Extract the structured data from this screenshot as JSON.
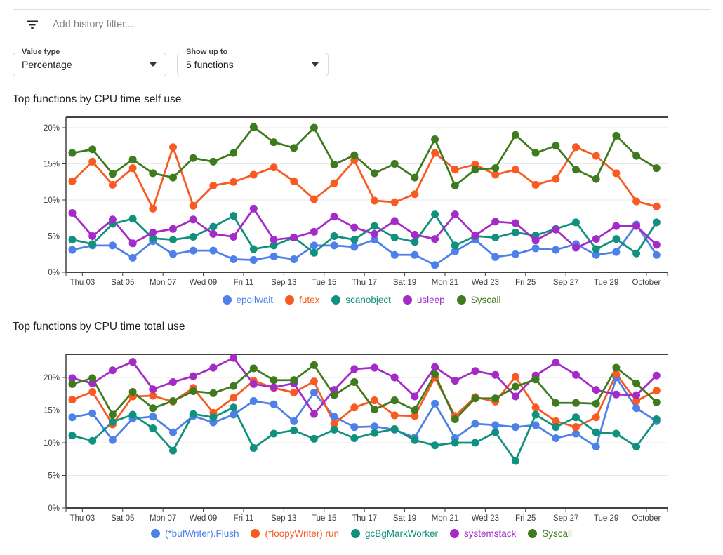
{
  "filter_bar": {
    "icon": "filter-list-icon",
    "placeholder": "Add history filter..."
  },
  "controls": {
    "value_type": {
      "label": "Value type",
      "value": "Percentage"
    },
    "show_up_to": {
      "label": "Show up to",
      "value": "5 functions"
    }
  },
  "colors": {
    "blue": "#4D80E8",
    "orange": "#F85A21",
    "teal": "#10917E",
    "purple": "#A42BC8",
    "green": "#3E7A1E",
    "axis": "#424242",
    "grid": "#E9E9E9",
    "tick_label": "#3C4043"
  },
  "chart_data": [
    {
      "type": "line",
      "title": "Top functions by CPU time self use",
      "xlabel": "",
      "ylabel": "",
      "ylim": [
        0,
        21.5
      ],
      "grid": true,
      "legend_position": "bottom",
      "y_tick_labels": [
        "0%",
        "5%",
        "10%",
        "15%",
        "20%"
      ],
      "x_tick_labels": [
        "Thu 03",
        "Sat 05",
        "Mon 07",
        "Wed 09",
        "Fri 11",
        "Sep 13",
        "Tue 15",
        "Thu 17",
        "Sat 19",
        "Mon 21",
        "Wed 23",
        "Fri 25",
        "Sep 27",
        "Tue 29",
        "October"
      ],
      "series": [
        {
          "name": "epollwait",
          "color": "#4D80E8",
          "values": [
            3.1,
            3.7,
            3.7,
            2.0,
            4.3,
            2.5,
            3.0,
            3.0,
            1.8,
            1.7,
            2.2,
            1.8,
            3.7,
            3.7,
            3.5,
            4.5,
            2.4,
            2.4,
            1.0,
            2.9,
            4.5,
            2.1,
            2.5,
            3.3,
            3.1,
            3.9,
            2.4,
            2.8,
            6.6,
            2.4
          ]
        },
        {
          "name": "futex",
          "color": "#F85A21",
          "values": [
            12.6,
            15.3,
            12.1,
            14.4,
            8.8,
            17.3,
            9.2,
            12.0,
            12.5,
            13.5,
            14.5,
            12.6,
            10.1,
            12.3,
            15.5,
            9.9,
            9.7,
            10.8,
            16.5,
            14.2,
            14.9,
            13.5,
            14.2,
            12.1,
            12.9,
            17.3,
            16.1,
            13.7,
            9.8,
            9.1
          ]
        },
        {
          "name": "scanobject",
          "color": "#10917E",
          "values": [
            4.5,
            3.9,
            6.7,
            7.4,
            4.7,
            4.5,
            4.9,
            6.3,
            7.8,
            3.2,
            3.7,
            4.8,
            2.7,
            5.0,
            4.5,
            6.4,
            4.8,
            4.2,
            8.0,
            3.7,
            5.0,
            4.8,
            5.5,
            5.1,
            6.0,
            6.9,
            3.2,
            4.6,
            2.6,
            6.9
          ]
        },
        {
          "name": "usleep",
          "color": "#A42BC8",
          "values": [
            8.2,
            5.0,
            7.3,
            4.0,
            5.5,
            6.0,
            7.3,
            5.3,
            4.9,
            8.8,
            4.5,
            4.8,
            5.6,
            7.7,
            6.2,
            5.3,
            7.1,
            5.2,
            4.6,
            8.0,
            5.1,
            7.0,
            6.8,
            4.4,
            5.9,
            3.4,
            4.6,
            6.4,
            6.4,
            3.8
          ]
        },
        {
          "name": "Syscall",
          "color": "#3E7A1E",
          "values": [
            16.5,
            17.0,
            13.6,
            15.6,
            13.7,
            13.1,
            15.8,
            15.3,
            16.5,
            20.1,
            18.0,
            17.2,
            20.0,
            14.9,
            16.2,
            13.7,
            15.0,
            13.1,
            18.4,
            12.0,
            14.2,
            14.4,
            19.0,
            16.5,
            17.5,
            14.2,
            12.9,
            18.9,
            16.1,
            14.4
          ]
        }
      ]
    },
    {
      "type": "line",
      "title": "Top functions by CPU time total use",
      "xlabel": "",
      "ylabel": "",
      "ylim": [
        0,
        23.5
      ],
      "grid": true,
      "legend_position": "bottom",
      "y_tick_labels": [
        "0%",
        "5%",
        "10%",
        "15%",
        "20%"
      ],
      "x_tick_labels": [
        "Thu 03",
        "Sat 05",
        "Mon 07",
        "Wed 09",
        "Fri 11",
        "Sep 13",
        "Tue 15",
        "Thu 17",
        "Sat 19",
        "Mon 21",
        "Wed 23",
        "Fri 25",
        "Sep 27",
        "Tue 29",
        "October"
      ],
      "series": [
        {
          "name": "(*bufWriter).Flush",
          "color": "#4D80E8",
          "values": [
            13.9,
            14.5,
            10.4,
            13.7,
            14.0,
            11.6,
            14.1,
            13.1,
            14.3,
            16.4,
            15.9,
            13.3,
            17.7,
            14.0,
            12.4,
            12.5,
            12.0,
            10.8,
            16.0,
            10.7,
            12.9,
            12.7,
            12.4,
            12.7,
            10.7,
            11.4,
            9.4,
            20.0,
            15.3,
            13.3
          ]
        },
        {
          "name": "(*loopyWriter).run",
          "color": "#F85A21",
          "values": [
            16.6,
            17.8,
            12.8,
            17.1,
            17.2,
            16.3,
            18.4,
            14.6,
            16.9,
            19.5,
            18.4,
            17.7,
            19.4,
            12.9,
            15.4,
            16.5,
            14.2,
            14.1,
            20.0,
            14.1,
            17.0,
            16.3,
            20.1,
            15.4,
            13.3,
            12.4,
            13.9,
            20.5,
            16.4,
            18.0
          ]
        },
        {
          "name": "gcBgMarkWorker",
          "color": "#10917E",
          "values": [
            11.1,
            10.3,
            13.2,
            14.3,
            12.2,
            8.8,
            14.4,
            13.9,
            15.4,
            9.2,
            11.4,
            11.9,
            10.6,
            12.0,
            10.7,
            11.5,
            12.1,
            10.4,
            9.6,
            10.0,
            10.0,
            11.6,
            7.2,
            14.3,
            12.4,
            13.9,
            11.6,
            11.4,
            9.4,
            13.6
          ]
        },
        {
          "name": "systemstack",
          "color": "#A42BC8",
          "values": [
            19.9,
            19.1,
            21.1,
            22.4,
            18.2,
            19.3,
            20.2,
            21.5,
            23.0,
            19.0,
            18.5,
            19.1,
            14.4,
            18.1,
            21.3,
            21.5,
            20.0,
            17.1,
            21.6,
            19.5,
            21.0,
            20.4,
            17.1,
            20.3,
            22.3,
            20.4,
            18.1,
            17.4,
            17.3,
            20.3
          ]
        },
        {
          "name": "Syscall",
          "color": "#3E7A1E",
          "values": [
            19.0,
            19.9,
            14.3,
            17.8,
            15.3,
            16.4,
            17.9,
            17.6,
            18.7,
            21.4,
            19.6,
            19.6,
            21.9,
            17.3,
            19.3,
            15.1,
            16.5,
            15.0,
            20.5,
            13.6,
            16.8,
            16.8,
            18.6,
            19.7,
            16.1,
            16.1,
            16.0,
            21.5,
            19.1,
            16.2
          ]
        }
      ]
    }
  ]
}
